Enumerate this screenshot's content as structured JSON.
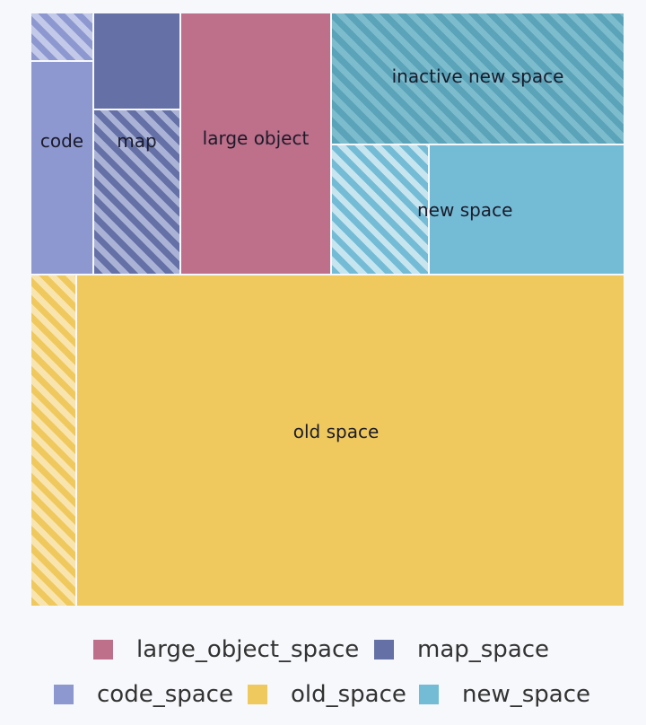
{
  "chart_data": {
    "type": "treemap",
    "legend_position": "bottom",
    "nodes": [
      {
        "series": "code_space",
        "label": "code",
        "color": "#8d98d0"
      },
      {
        "series": "map_space",
        "label": "map",
        "color": "#6470a6"
      },
      {
        "series": "large_object_space",
        "label": "large object",
        "color": "#be6f8a"
      },
      {
        "series": "new_space",
        "label": "inactive new space",
        "color": "#5aa3b8"
      },
      {
        "series": "new_space",
        "label": "new space",
        "color": "#74bcd6"
      },
      {
        "series": "old_space",
        "label": "old space",
        "color": "#f0c95e"
      }
    ],
    "legend": [
      {
        "name": "large_object_space",
        "color": "#be6f8a"
      },
      {
        "name": "map_space",
        "color": "#6470a6"
      },
      {
        "name": "code_space",
        "color": "#8d98d0"
      },
      {
        "name": "old_space",
        "color": "#f0c95e"
      },
      {
        "name": "new_space",
        "color": "#74bcd6"
      }
    ]
  }
}
